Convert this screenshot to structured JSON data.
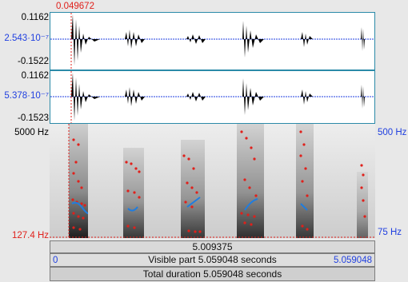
{
  "cursor": {
    "time": "0.049672"
  },
  "channel1": {
    "max": "0.1162",
    "cursor_value": "2.543·10⁻⁷",
    "min": "-0.1522"
  },
  "channel2": {
    "max": "0.1162",
    "cursor_value": "5.378·10⁻⁷",
    "min": "-0.1523"
  },
  "spectrogram": {
    "freq_max": "5000 Hz",
    "freq_cursor": "127.4 Hz",
    "pitch_max": "500 Hz",
    "pitch_min": "75 Hz"
  },
  "bars": {
    "selection_duration": "5.009375",
    "visible_start": "0",
    "visible_label": "Visible part 5.059048 seconds",
    "visible_end": "5.059048",
    "total_label": "Total duration 5.059048 seconds"
  },
  "colors": {
    "waveform": "#000000",
    "zero_line": "#1f3fe0",
    "panel_border": "#2b8aa8",
    "formant": "#e0201b",
    "pitch": "#1f7de0",
    "cursor": "#e0201b"
  }
}
